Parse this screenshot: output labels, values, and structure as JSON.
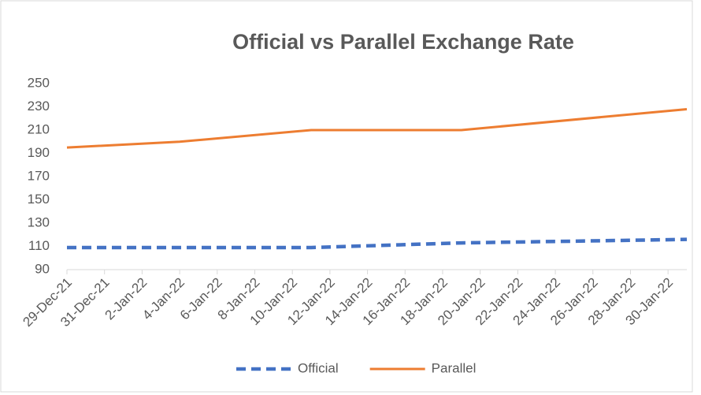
{
  "chart_data": {
    "type": "line",
    "title": "Official vs Parallel Exchange Rate",
    "x": [
      "29-Dec-21",
      "4-Jan-22",
      "11-Jan-22",
      "19-Jan-22",
      "31-Jan-22"
    ],
    "series": [
      {
        "name": "Official",
        "color": "#4472c4",
        "dash": true,
        "values": [
          109,
          109,
          109,
          113,
          116
        ]
      },
      {
        "name": "Parallel",
        "color": "#ed7d31",
        "dash": false,
        "values": [
          195,
          200,
          210,
          210,
          228
        ]
      }
    ],
    "xlim": [
      "29-Dec-21",
      "31-Jan-22"
    ],
    "xticks": [
      "29-Dec-21",
      "31-Dec-21",
      "2-Jan-22",
      "4-Jan-22",
      "6-Jan-22",
      "8-Jan-22",
      "10-Jan-22",
      "12-Jan-22",
      "14-Jan-22",
      "16-Jan-22",
      "18-Jan-22",
      "20-Jan-22",
      "22-Jan-22",
      "24-Jan-22",
      "26-Jan-22",
      "28-Jan-22",
      "30-Jan-22"
    ],
    "ylim": [
      90,
      250
    ],
    "yticks": [
      90,
      110,
      130,
      150,
      170,
      190,
      210,
      230,
      250
    ],
    "grid": false,
    "legend": "bottom"
  }
}
